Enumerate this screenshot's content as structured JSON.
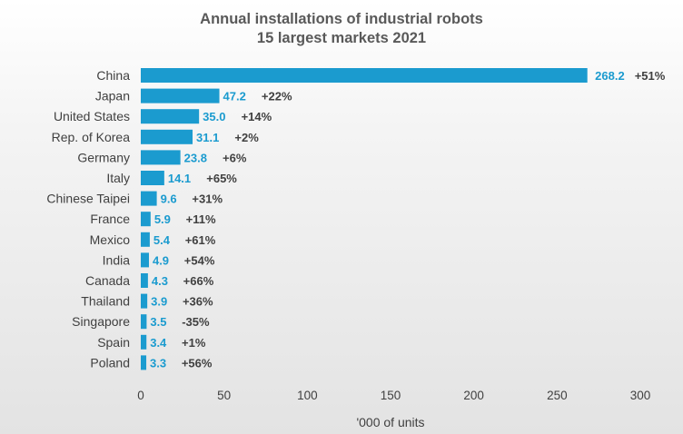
{
  "chart_data": {
    "type": "bar",
    "orientation": "horizontal",
    "title": [
      "Annual installations of industrial robots",
      "15 largest markets 2021"
    ],
    "categories": [
      "China",
      "Japan",
      "United States",
      "Rep. of Korea",
      "Germany",
      "Italy",
      "Chinese Taipei",
      "France",
      "Mexico",
      "India",
      "Canada",
      "Thailand",
      "Singapore",
      "Spain",
      "Poland"
    ],
    "values": [
      268.2,
      47.2,
      35.0,
      31.1,
      23.8,
      14.1,
      9.6,
      5.9,
      5.4,
      4.9,
      4.3,
      3.9,
      3.5,
      3.4,
      3.3
    ],
    "value_labels": [
      "268.2",
      "47.2",
      "35.0",
      "31.1",
      "23.8",
      "14.1",
      "9.6",
      "5.9",
      "5.4",
      "4.9",
      "4.3",
      "3.9",
      "3.5",
      "3.4",
      "3.3"
    ],
    "change_labels": [
      "+51%",
      "+22%",
      "+14%",
      "+2%",
      "+6%",
      "+65%",
      "+31%",
      "+11%",
      "+61%",
      "+54%",
      "+66%",
      "+36%",
      "-35%",
      "+1%",
      "+56%"
    ],
    "xlabel": "'000 of units",
    "ylabel": "",
    "xlim": [
      0,
      300
    ],
    "xticks": [
      0,
      50,
      100,
      150,
      200,
      250,
      300
    ],
    "xtick_labels": [
      "0",
      "50",
      "100",
      "150",
      "200",
      "250",
      "300"
    ],
    "grid": false,
    "legend": "none",
    "colors": {
      "bar": "#1b9bcf",
      "value_text": "#1b9bcf",
      "change_text": "#404040",
      "text": "#404040",
      "title": "#595959"
    }
  }
}
